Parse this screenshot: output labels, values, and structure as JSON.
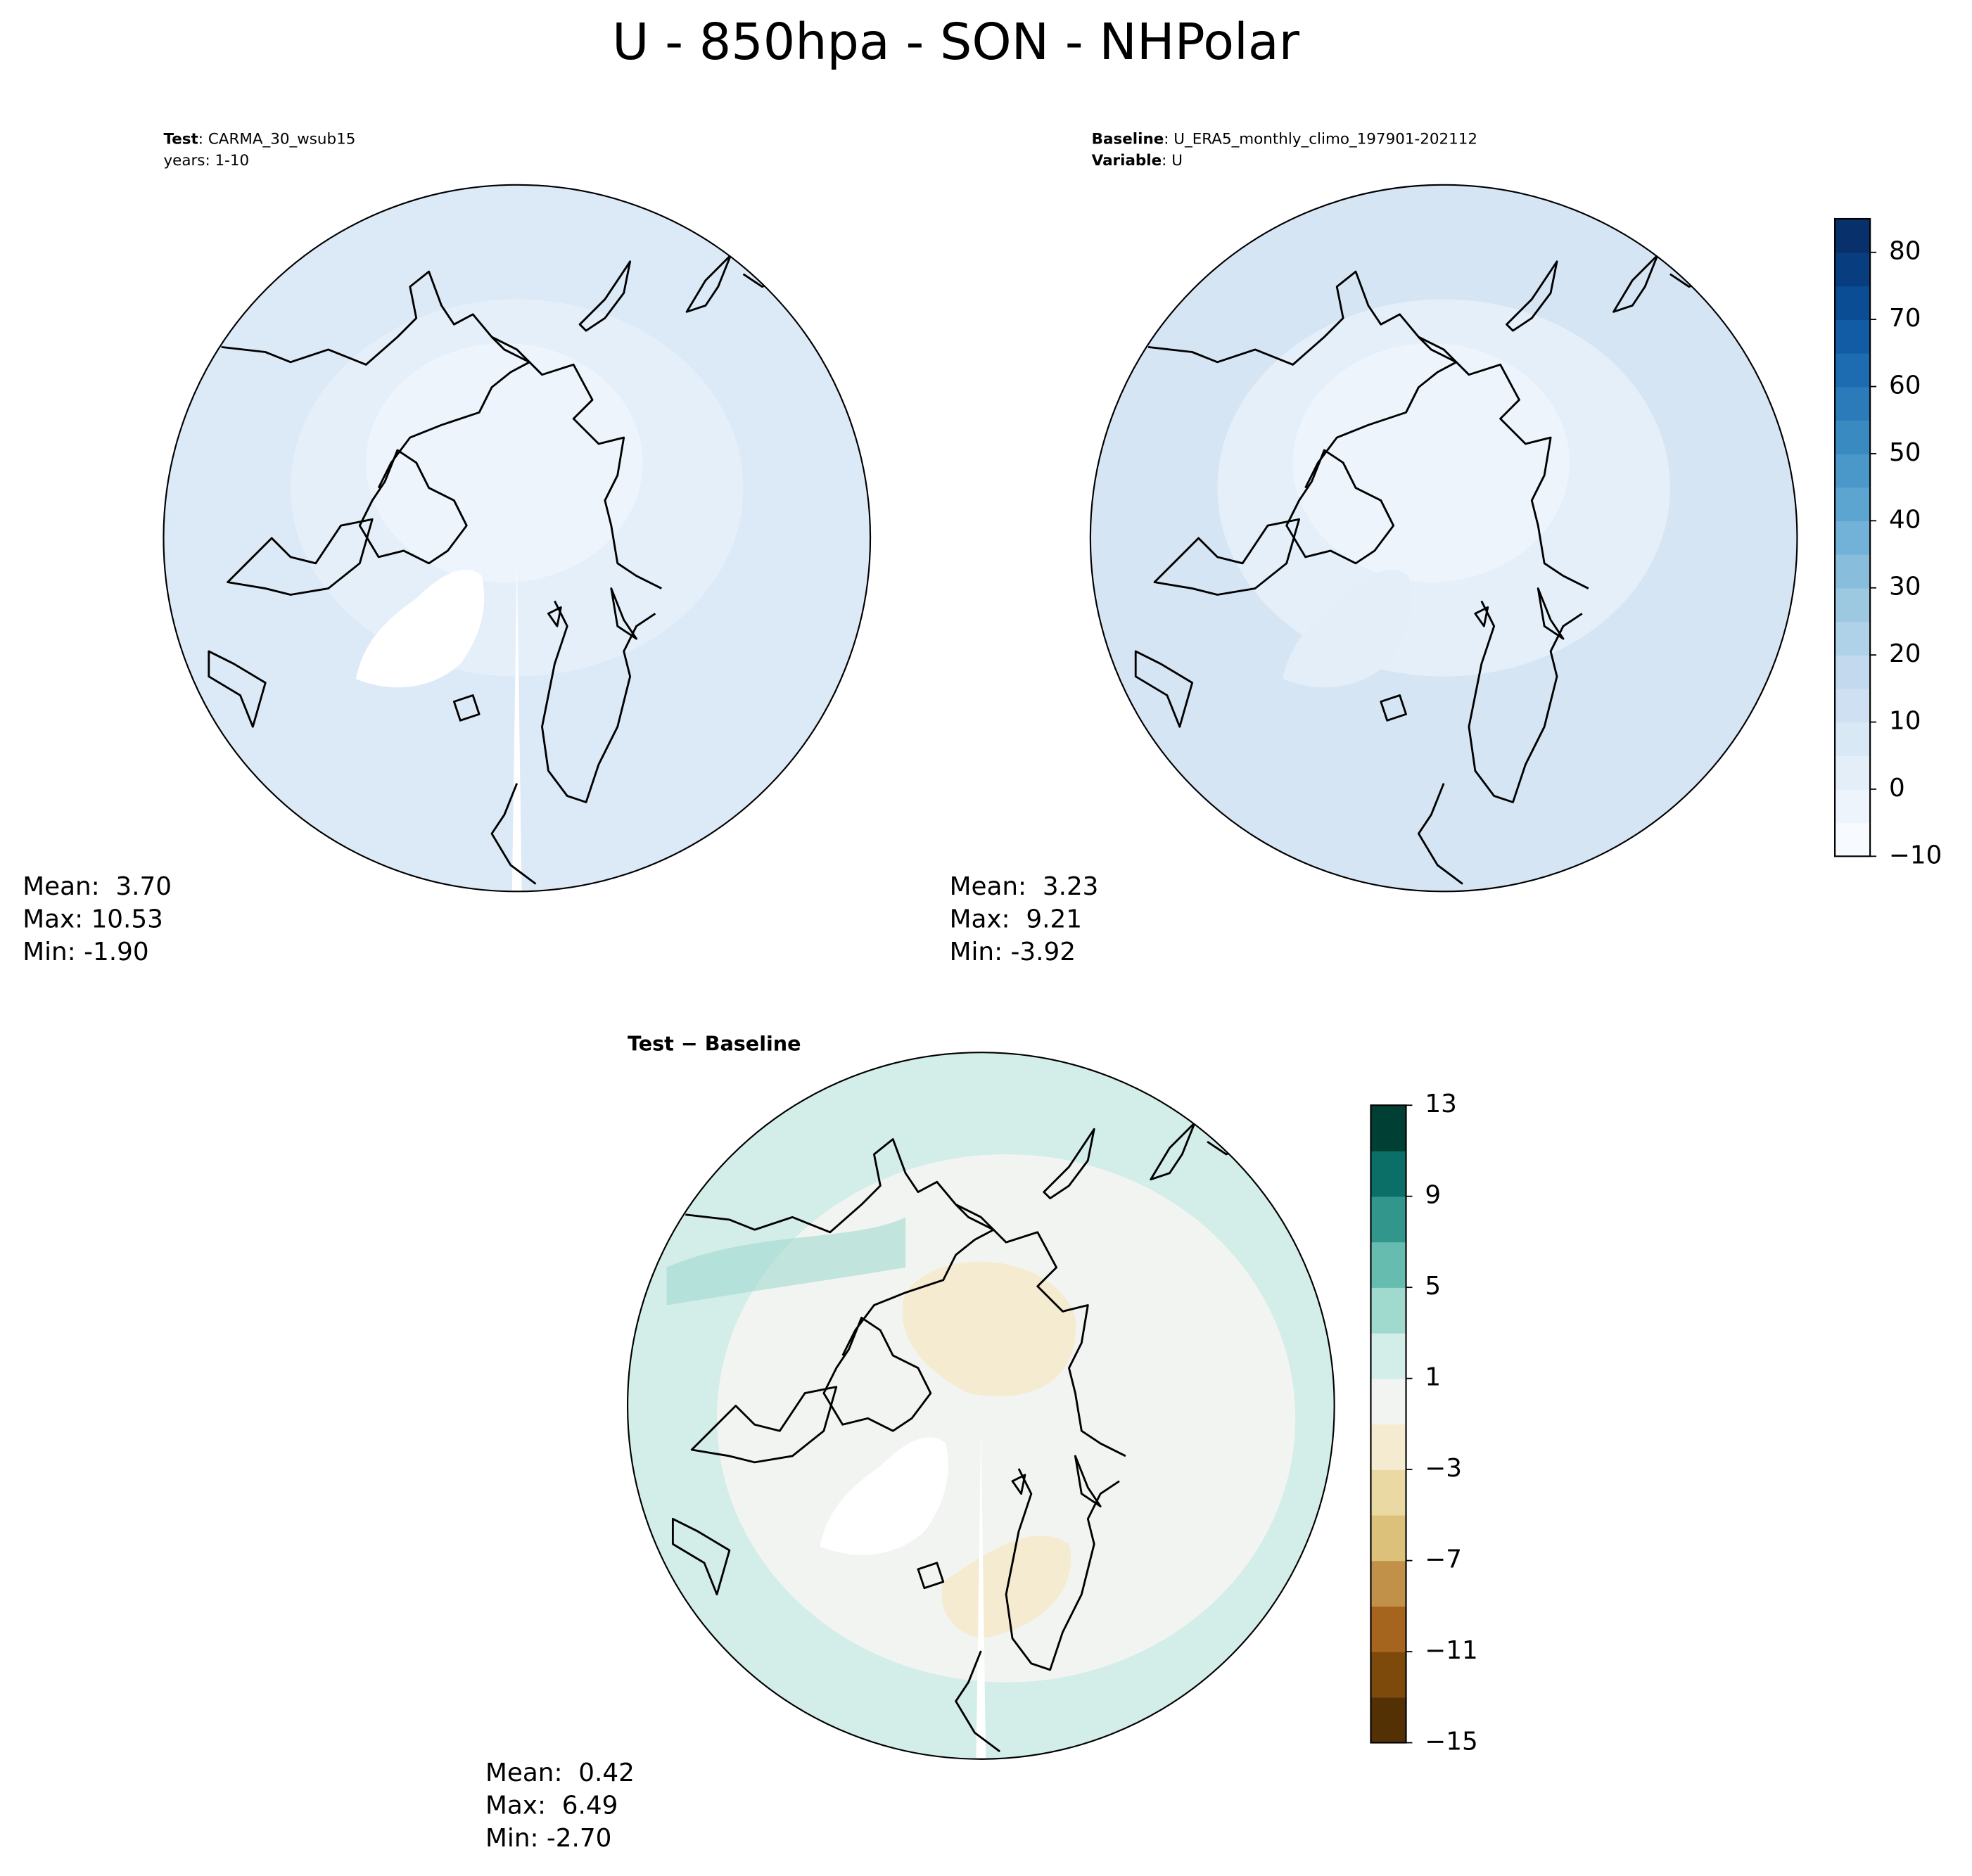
{
  "title": "U - 850hpa - SON - NHPolar",
  "panels": [
    {
      "header": [
        {
          "label": "Test",
          "text": ": CARMA_30_wsub15"
        },
        {
          "text": "years: 1-10"
        }
      ],
      "stats": [
        "Mean:  3.70",
        "Max: 10.53",
        "Min: -1.90"
      ]
    },
    {
      "header": [
        {
          "label": "Baseline",
          "text": ": U_ERA5_monthly_climo_197901-202112"
        },
        {
          "label": "Variable",
          "text": ": U"
        }
      ],
      "stats": [
        "Mean:  3.23",
        "Max:  9.21",
        "Min: -3.92"
      ]
    },
    {
      "header": [
        {
          "label": "Test − Baseline"
        }
      ],
      "stats": [
        "Mean:  0.42",
        "Max:  6.49",
        "Min: -2.70"
      ]
    }
  ],
  "colorbars": [
    {
      "lim": [
        -10,
        85
      ],
      "levels": [
        -10,
        -5,
        0,
        5,
        10,
        15,
        20,
        25,
        30,
        35,
        40,
        45,
        50,
        55,
        60,
        65,
        70,
        75,
        80,
        85
      ],
      "colors": [
        "#f7fbff",
        "#edf4fc",
        "#e3eef9",
        "#d9e8f5",
        "#cee0f2",
        "#c2d9ee",
        "#b0d2e8",
        "#9dc9e0",
        "#88bedc",
        "#72b2d8",
        "#5da5d1",
        "#4a98c9",
        "#3a8ac2",
        "#2b7bba",
        "#1d6cb1",
        "#115ca5",
        "#0a4d94",
        "#083e7f",
        "#08306b"
      ],
      "ticks": [
        {
          "value": -10,
          "label": "−10"
        },
        0,
        10,
        20,
        30,
        40,
        50,
        60,
        70,
        80
      ]
    },
    {
      "lim": [
        -15,
        13
      ],
      "levels": [
        -15,
        -13,
        -11,
        -9,
        -7,
        -5,
        -3,
        -1,
        1,
        3,
        5,
        7,
        9,
        11,
        13
      ],
      "colors": [
        "#543005",
        "#7d4a0c",
        "#a6651e",
        "#c1914a",
        "#dcc17a",
        "#ebd9a3",
        "#f5ebd0",
        "#f2f4f2",
        "#d3ede8",
        "#a0d9ce",
        "#67bcb0",
        "#33968d",
        "#0b6f68",
        "#003f33"
      ],
      "ticks": [
        {
          "value": -15,
          "label": "−15"
        },
        {
          "value": -11,
          "label": "−11"
        },
        {
          "value": -7,
          "label": "−7"
        },
        {
          "value": -3,
          "label": "−3"
        },
        1,
        5,
        9,
        13
      ]
    }
  ]
}
